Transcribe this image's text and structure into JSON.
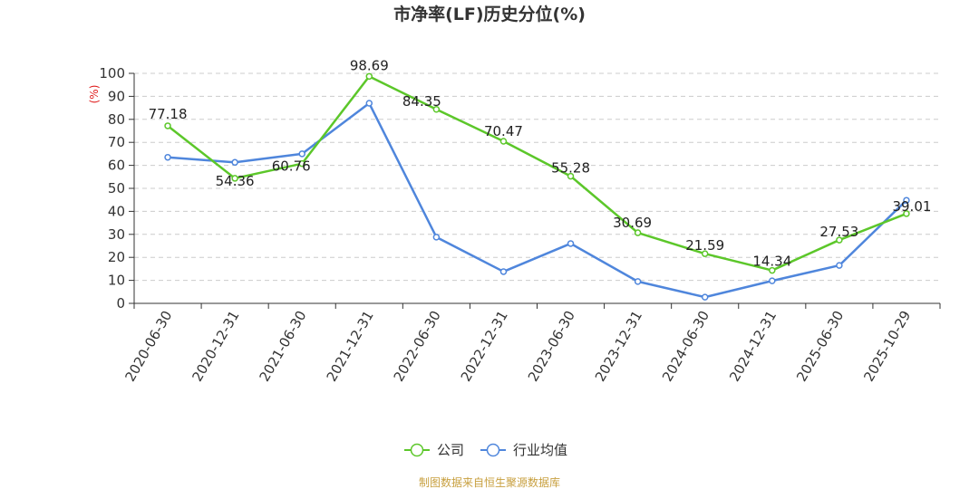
{
  "chart_data": {
    "type": "line",
    "title": "市净率(LF)历史分位(%)",
    "y_unit": "(%)",
    "categories": [
      "2020-06-30",
      "2020-12-31",
      "2021-06-30",
      "2021-12-31",
      "2022-06-30",
      "2022-12-31",
      "2023-06-30",
      "2023-12-31",
      "2024-06-30",
      "2024-12-31",
      "2025-06-30",
      "2025-10-29"
    ],
    "ylim": [
      0,
      100
    ],
    "yticks": [
      0,
      10,
      20,
      30,
      40,
      50,
      60,
      70,
      80,
      90,
      100
    ],
    "grid": true,
    "legend_position": "bottom-center",
    "series": [
      {
        "name": "公司",
        "color": "#5cc72a",
        "show_labels": true,
        "values": [
          77.18,
          54.36,
          60.76,
          98.69,
          84.35,
          70.47,
          55.28,
          30.69,
          21.59,
          14.34,
          27.53,
          39.01
        ]
      },
      {
        "name": "行业均值",
        "color": "#4f86dc",
        "show_labels": false,
        "values": [
          63.5,
          61.3,
          65.0,
          87.0,
          28.8,
          13.8,
          26.0,
          9.5,
          2.7,
          9.8,
          16.5,
          44.8
        ]
      }
    ],
    "source": "制图数据来自恒生聚源数据库",
    "colors": {
      "unit": "#e02020",
      "source": "#c8a040",
      "axis": "#333333",
      "grid": "#cccccc"
    }
  }
}
